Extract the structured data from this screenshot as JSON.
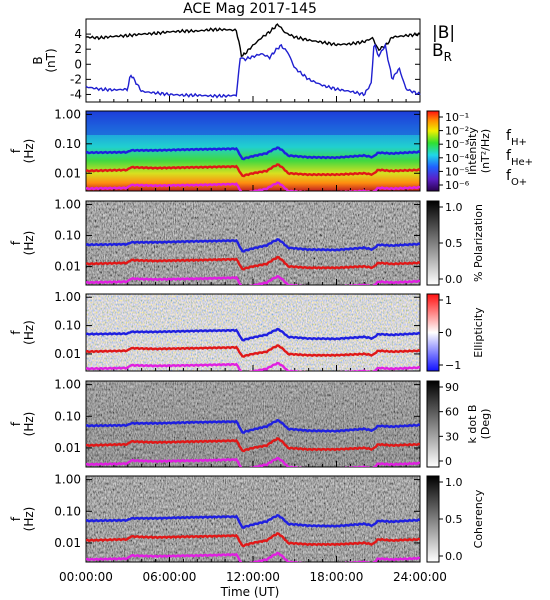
{
  "chart_data": {
    "type": "line",
    "title": "ACE Mag 2017-145",
    "xlabel": "Time (UT)",
    "xticks": [
      "00:00:00",
      "06:00:00",
      "12:00:00",
      "18:00:00",
      "24:00:00"
    ],
    "xlim_hours": [
      0,
      24
    ],
    "panels": [
      {
        "ylabel": "B\n(nT)",
        "ylim": [
          -5,
          6
        ],
        "yticks": [
          "4",
          "2",
          "0",
          "-2",
          "-4"
        ],
        "legend": [
          "|B|",
          "BR"
        ],
        "colors": {
          "|B|": "#000000",
          "BR": "#1f1fd0"
        },
        "series": [
          {
            "name": "|B|",
            "x": [
              0,
              1,
              2,
              3,
              4,
              5,
              6,
              7,
              8,
              9,
              10,
              10.8,
              11.2,
              12,
              12.6,
              13.2,
              13.8,
              14.3,
              15,
              16,
              17,
              18,
              19,
              20,
              20.6,
              21,
              21.6,
              22,
              23,
              24
            ],
            "values": [
              3.6,
              3.5,
              3.7,
              3.8,
              4.0,
              4.1,
              4.3,
              4.4,
              4.4,
              4.6,
              4.6,
              4.5,
              1.0,
              2.5,
              3.5,
              4.3,
              5.3,
              4.2,
              3.6,
              3.2,
              2.9,
              2.6,
              2.7,
              3.0,
              3.5,
              1.9,
              2.6,
              3.6,
              3.8,
              4.0
            ]
          },
          {
            "name": "BR",
            "x": [
              0,
              1,
              2,
              3,
              3.2,
              4,
              5,
              6,
              7,
              8,
              9,
              10,
              10.8,
              11.1,
              11.3,
              12,
              12.6,
              13.2,
              13.6,
              14,
              14.5,
              15,
              16,
              17,
              18,
              19,
              20,
              20.5,
              20.7,
              21,
              21.5,
              22,
              22.5,
              23,
              24
            ],
            "values": [
              -3.0,
              -3.3,
              -3.4,
              -3.3,
              -1.3,
              -3.6,
              -3.8,
              -4.0,
              -4.1,
              -4.1,
              -4.2,
              -4.2,
              -4.1,
              1.2,
              0.6,
              1.0,
              1.4,
              0.9,
              1.8,
              2.5,
              1.6,
              -0.5,
              -2.0,
              -2.8,
              -3.3,
              -3.6,
              -4.0,
              -2.5,
              3.0,
              1.0,
              2.5,
              -2.0,
              -0.5,
              -3.3,
              -4.0
            ]
          }
        ]
      },
      {
        "ylabel": "f\n(Hz)",
        "yticks": [
          "1.00",
          "0.10",
          "0.01"
        ],
        "ylim": [
          0.001,
          1.3
        ],
        "colorbar_label": "Intensity\n(nT²/Hz)",
        "colorbar_ticks": [
          "10⁻¹",
          "10⁻²",
          "10⁻³",
          "10⁻⁴",
          "10⁻⁵",
          "10⁻⁶"
        ],
        "colorbar_scale": "rainbow",
        "lines": [
          "fH+",
          "fHe+",
          "fO+"
        ]
      },
      {
        "ylabel": "f\n(Hz)",
        "yticks": [
          "1.00",
          "0.10",
          "0.01"
        ],
        "colorbar_label": "% Polarization",
        "colorbar_ticks": [
          "1.0",
          "0.5",
          "0.0"
        ],
        "colorbar_scale": "grayscale"
      },
      {
        "ylabel": "f\n(Hz)",
        "yticks": [
          "1.00",
          "0.10",
          "0.01"
        ],
        "colorbar_label": "Ellipticity",
        "colorbar_ticks": [
          "1",
          "0",
          "−1"
        ],
        "colorbar_scale": "red-white-blue"
      },
      {
        "ylabel": "f\n(Hz)",
        "yticks": [
          "1.00",
          "0.10",
          "0.01"
        ],
        "colorbar_label": "k dot B\n(Deg)",
        "colorbar_ticks": [
          "90",
          "60",
          "30",
          "0"
        ],
        "colorbar_scale": "grayscale"
      },
      {
        "ylabel": "f\n(Hz)",
        "yticks": [
          "1.00",
          "0.10",
          "0.01"
        ],
        "colorbar_label": "Coherency",
        "colorbar_ticks": [
          "1.0",
          "0.5",
          "0.0"
        ],
        "colorbar_scale": "grayscale"
      }
    ],
    "gyro_lines": {
      "x": [
        0,
        3,
        3.2,
        5,
        8,
        10.8,
        11.2,
        12,
        13,
        13.8,
        14.5,
        16,
        18,
        20,
        20.6,
        21,
        22,
        24
      ],
      "fH+": [
        0.05,
        0.052,
        0.06,
        0.06,
        0.065,
        0.068,
        0.03,
        0.038,
        0.048,
        0.075,
        0.04,
        0.035,
        0.034,
        0.04,
        0.035,
        0.05,
        0.047,
        0.053
      ],
      "fHe+": [
        0.012,
        0.013,
        0.016,
        0.015,
        0.016,
        0.017,
        0.008,
        0.01,
        0.012,
        0.02,
        0.01,
        0.009,
        0.009,
        0.01,
        0.009,
        0.013,
        0.012,
        0.013
      ],
      "fO+": [
        0.003,
        0.0032,
        0.004,
        0.0038,
        0.004,
        0.0043,
        0.002,
        0.0024,
        0.003,
        0.0048,
        0.0025,
        0.0022,
        0.0022,
        0.0025,
        0.0022,
        0.0032,
        0.003,
        0.0033
      ],
      "colors": {
        "fH+": "#1f1fe0",
        "fHe+": "#e01818",
        "fO+": "#e020e0"
      }
    }
  }
}
